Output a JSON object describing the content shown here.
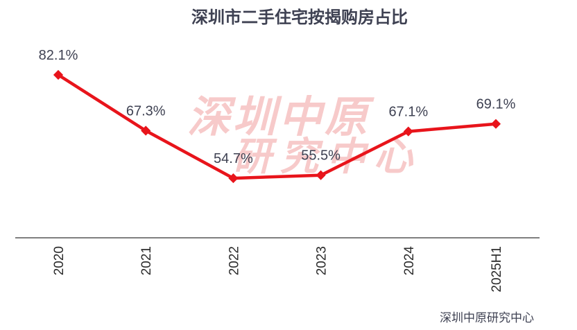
{
  "chart_data": {
    "type": "line",
    "title": "深圳市二手住宅按揭购房占比",
    "categories": [
      "2020",
      "2021",
      "2022",
      "2023",
      "2024",
      "2025H1"
    ],
    "series": [
      {
        "values": [
          82.1,
          67.3,
          54.7,
          55.5,
          67.1,
          69.1
        ]
      }
    ],
    "data_labels": [
      "82.1%",
      "67.3%",
      "54.7%",
      "55.5%",
      "67.1%",
      "69.1%"
    ],
    "value_unit": "%",
    "ylim": [
      0,
      100
    ],
    "grid": false,
    "legend": "none",
    "source": "深圳中原研究中心",
    "watermark": [
      "深圳中原",
      "研究中心"
    ],
    "colors": {
      "line": "#e8141b",
      "marker": "#e8141b",
      "axis": "#555555",
      "text": "#3e4152",
      "watermark": "#f2a0a0"
    }
  }
}
